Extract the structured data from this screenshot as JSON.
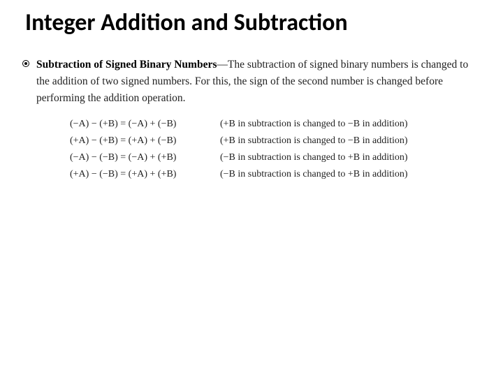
{
  "title": "Integer Addition and Subtraction",
  "section": {
    "term": "Subtraction of Signed Binary Numbers",
    "description_prefix": "—The subtraction of signed binary numbers is changed to the addition of two signed numbers. For this, the sign of the second number is changed before performing the addition operation."
  },
  "equations": [
    {
      "lhs": "(−A) − (+B) = (−A) + (−B)",
      "note": "(+B in subtraction is changed to −B in addition)"
    },
    {
      "lhs": "(+A) − (+B) = (+A) + (−B)",
      "note": "(+B in subtraction is changed to −B in addition)"
    },
    {
      "lhs": "(−A) − (−B) = (−A) + (+B)",
      "note": "(−B in subtraction is changed to +B in addition)"
    },
    {
      "lhs": "(+A) − (−B) = (+A) + (+B)",
      "note": "(−B in subtraction is changed to +B in addition)"
    }
  ],
  "style": {
    "title_fontsize": 34,
    "title_color": "#000000",
    "body_fontsize": 15.5,
    "body_color": "#222222",
    "eq_fontsize": 14,
    "background": "#ffffff",
    "font_family_title": "Calibri",
    "font_family_body": "Georgia"
  }
}
